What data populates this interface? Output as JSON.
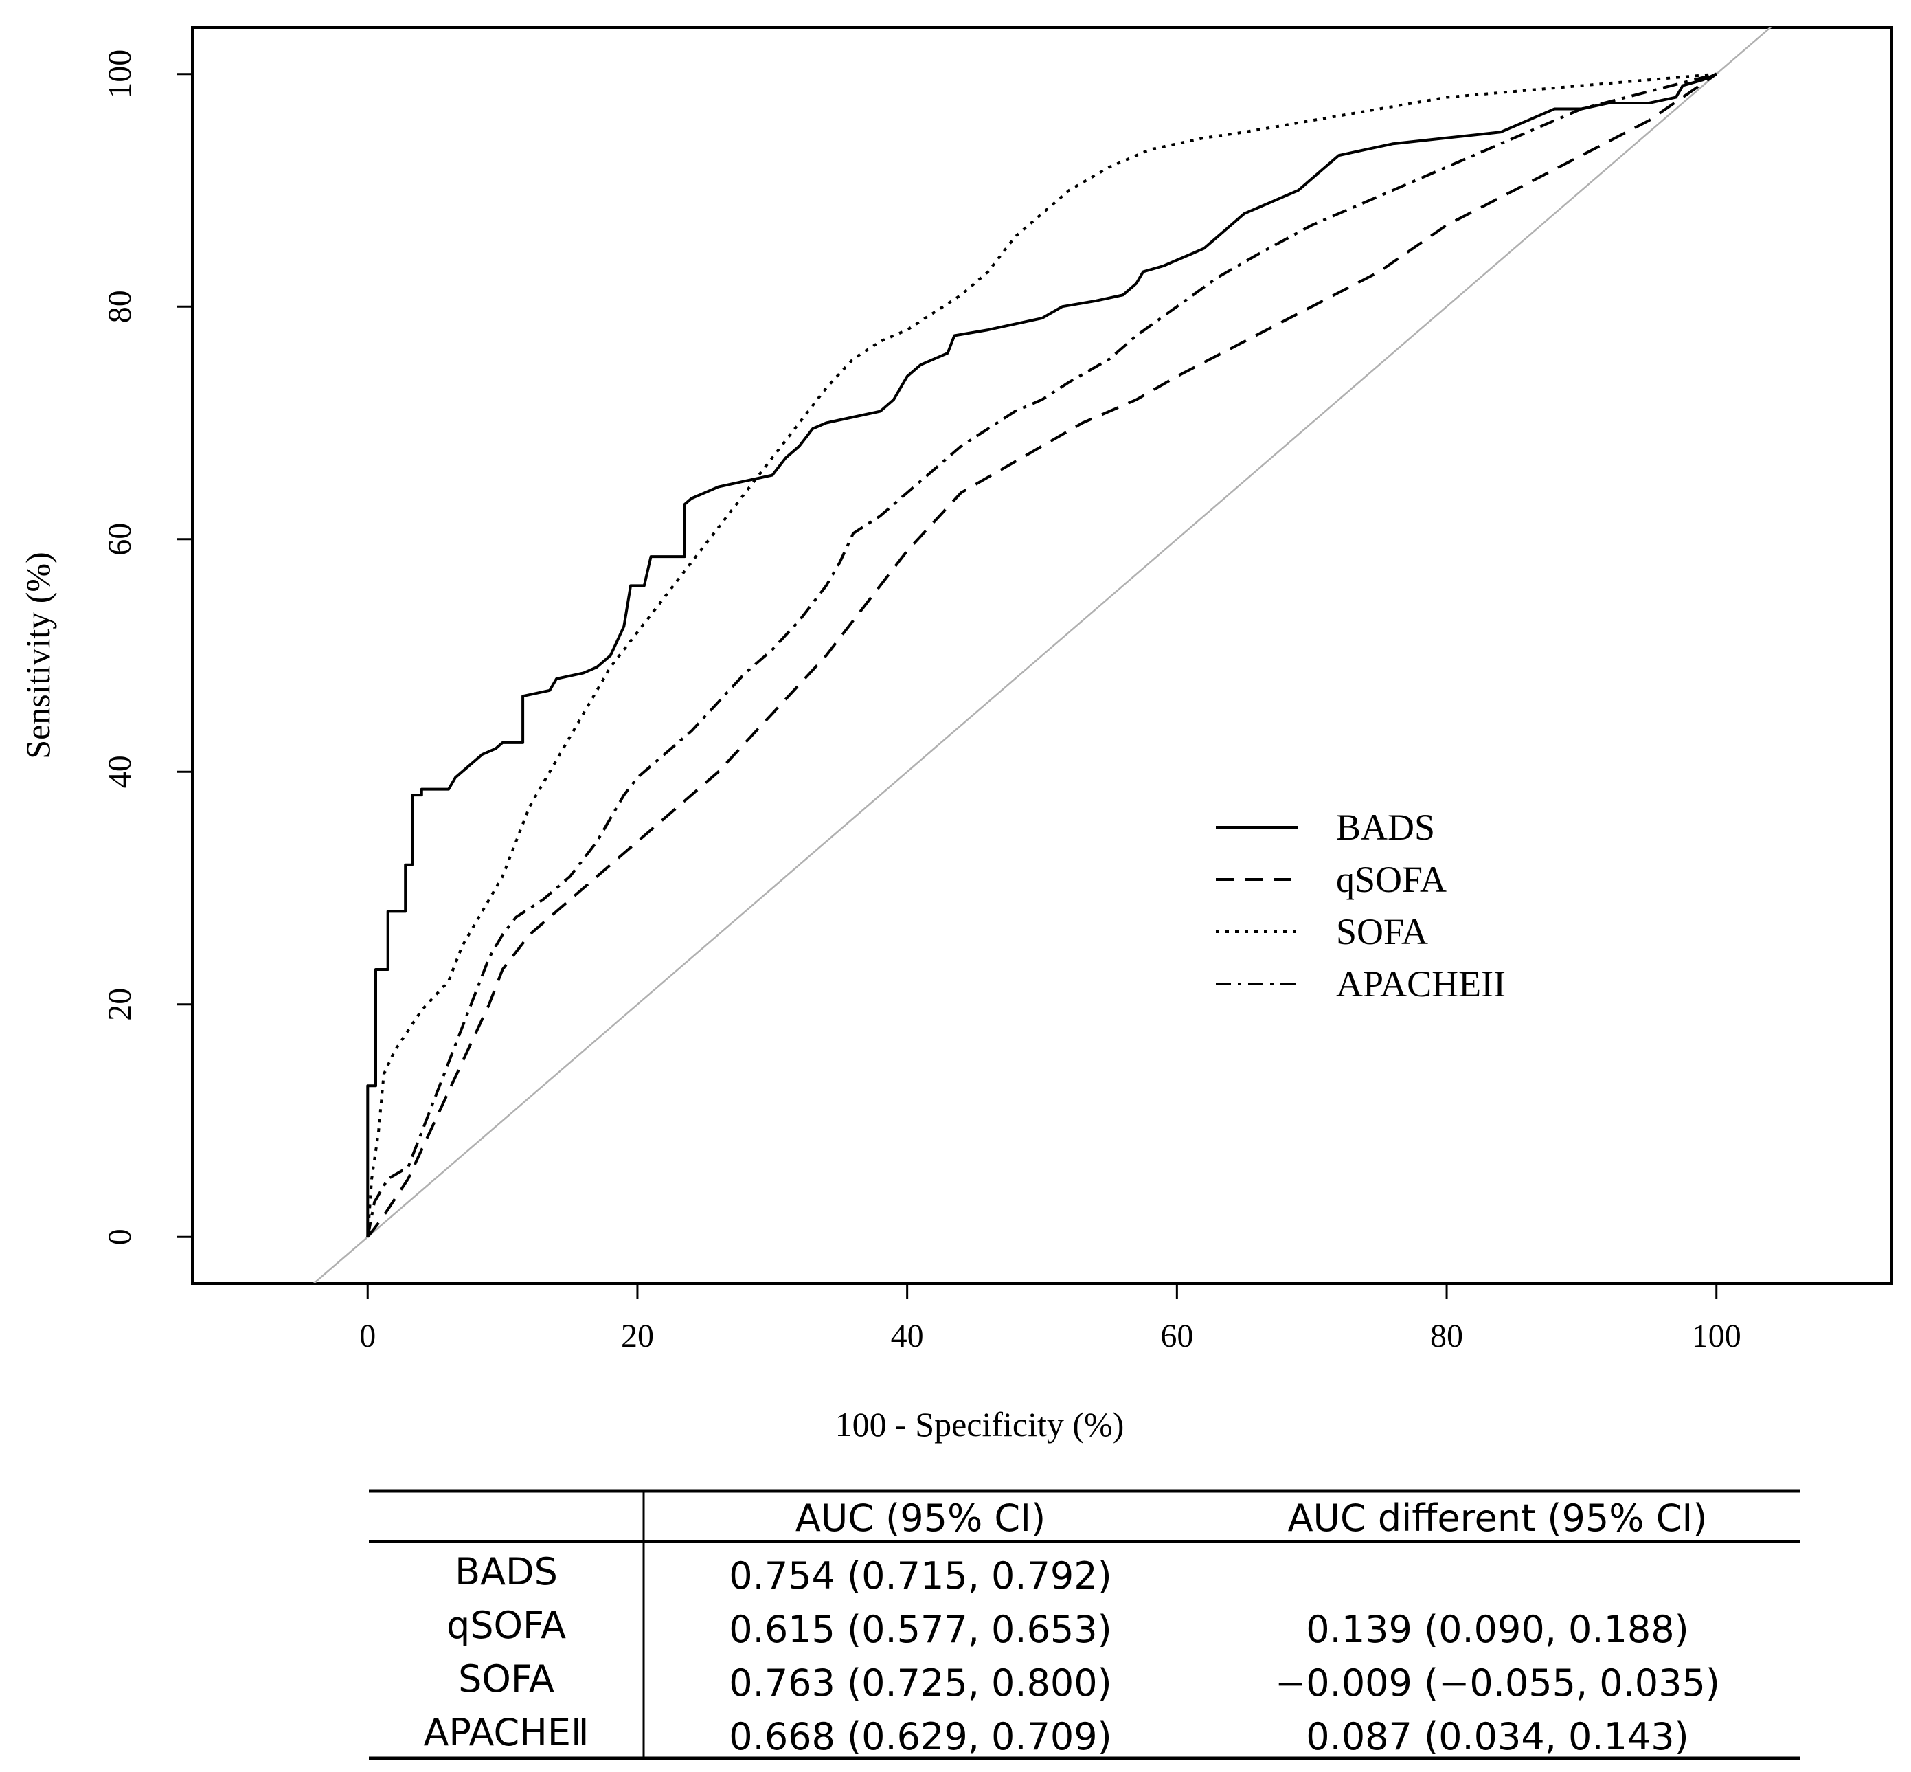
{
  "chart_data": {
    "type": "line",
    "title": "",
    "xlabel": "100 - Specificity (%)",
    "ylabel": "Sensitivity (%)",
    "xlim": [
      -13,
      113
    ],
    "ylim": [
      -4,
      104
    ],
    "xticks": [
      0,
      20,
      40,
      60,
      80,
      100
    ],
    "yticks": [
      0,
      20,
      40,
      60,
      80,
      100
    ],
    "legend_position": "center-right",
    "reference_line": {
      "name": "chance diagonal",
      "color": "#b0b0b0",
      "from": [
        0,
        0
      ],
      "to": [
        100,
        100
      ]
    },
    "series": [
      {
        "name": "BADS",
        "style": "solid",
        "points": [
          [
            0,
            0
          ],
          [
            0,
            13
          ],
          [
            0.6,
            13
          ],
          [
            0.6,
            23
          ],
          [
            1.5,
            23
          ],
          [
            1.5,
            28
          ],
          [
            2.8,
            28
          ],
          [
            2.8,
            32
          ],
          [
            3.3,
            32
          ],
          [
            3.3,
            38
          ],
          [
            4,
            38
          ],
          [
            4,
            38.5
          ],
          [
            6,
            38.5
          ],
          [
            6.5,
            39.5
          ],
          [
            7.5,
            40.5
          ],
          [
            8.5,
            41.5
          ],
          [
            9.5,
            42
          ],
          [
            10,
            42.5
          ],
          [
            11.5,
            42.5
          ],
          [
            11.5,
            46.5
          ],
          [
            13.5,
            47
          ],
          [
            14,
            48
          ],
          [
            16,
            48.5
          ],
          [
            17,
            49
          ],
          [
            18,
            50
          ],
          [
            19,
            52.5
          ],
          [
            19.5,
            56
          ],
          [
            20.5,
            56
          ],
          [
            21,
            58.5
          ],
          [
            23.5,
            58.5
          ],
          [
            23.5,
            63
          ],
          [
            24,
            63.5
          ],
          [
            26,
            64.5
          ],
          [
            28,
            65
          ],
          [
            30,
            65.5
          ],
          [
            31,
            67
          ],
          [
            32,
            68
          ],
          [
            33,
            69.5
          ],
          [
            34,
            70
          ],
          [
            36,
            70.5
          ],
          [
            38,
            71
          ],
          [
            39,
            72
          ],
          [
            39.5,
            73
          ],
          [
            40,
            74
          ],
          [
            41,
            75
          ],
          [
            42,
            75.5
          ],
          [
            43,
            76
          ],
          [
            43.5,
            77.5
          ],
          [
            46,
            78
          ],
          [
            48,
            78.5
          ],
          [
            50,
            79
          ],
          [
            51.5,
            80
          ],
          [
            54,
            80.5
          ],
          [
            56,
            81
          ],
          [
            57,
            82
          ],
          [
            57.5,
            83
          ],
          [
            59,
            83.5
          ],
          [
            60,
            84
          ],
          [
            61,
            84.5
          ],
          [
            62,
            85
          ],
          [
            63,
            86
          ],
          [
            64,
            87
          ],
          [
            65,
            88
          ],
          [
            66,
            88.5
          ],
          [
            67,
            89
          ],
          [
            68,
            89.5
          ],
          [
            69,
            90
          ],
          [
            70,
            91
          ],
          [
            71,
            92
          ],
          [
            72,
            93
          ],
          [
            74,
            93.5
          ],
          [
            76,
            94
          ],
          [
            80,
            94.5
          ],
          [
            84,
            95
          ],
          [
            86,
            96
          ],
          [
            87,
            96.5
          ],
          [
            88,
            97
          ],
          [
            90,
            97
          ],
          [
            92,
            97.5
          ],
          [
            95,
            97.5
          ],
          [
            97,
            98
          ],
          [
            97.5,
            99
          ],
          [
            99,
            99.5
          ],
          [
            100,
            100
          ]
        ]
      },
      {
        "name": "qSOFA",
        "style": "long-dash",
        "points": [
          [
            0,
            0
          ],
          [
            1,
            1.5
          ],
          [
            3,
            5
          ],
          [
            5,
            10
          ],
          [
            7,
            15
          ],
          [
            9,
            20
          ],
          [
            10,
            23
          ],
          [
            12,
            26
          ],
          [
            14,
            28
          ],
          [
            16,
            30
          ],
          [
            18,
            32
          ],
          [
            20,
            34
          ],
          [
            22,
            36
          ],
          [
            24,
            38
          ],
          [
            26,
            40
          ],
          [
            28,
            42.5
          ],
          [
            30,
            45
          ],
          [
            32,
            47.5
          ],
          [
            34,
            50
          ],
          [
            36,
            53
          ],
          [
            38,
            56
          ],
          [
            40,
            59
          ],
          [
            42,
            61.5
          ],
          [
            44,
            64
          ],
          [
            47,
            66
          ],
          [
            50,
            68
          ],
          [
            53,
            70
          ],
          [
            57,
            72
          ],
          [
            60,
            74
          ],
          [
            65,
            77
          ],
          [
            70,
            80
          ],
          [
            75,
            83
          ],
          [
            80,
            87
          ],
          [
            85,
            90
          ],
          [
            90,
            93
          ],
          [
            95,
            96
          ],
          [
            100,
            100
          ]
        ]
      },
      {
        "name": "SOFA",
        "style": "dotted",
        "points": [
          [
            0,
            0
          ],
          [
            0.3,
            5
          ],
          [
            0.8,
            9
          ],
          [
            1.2,
            14
          ],
          [
            2,
            16
          ],
          [
            4,
            19.5
          ],
          [
            6,
            22
          ],
          [
            7,
            25
          ],
          [
            8,
            27
          ],
          [
            10,
            31
          ],
          [
            12,
            37
          ],
          [
            14,
            41
          ],
          [
            16,
            45
          ],
          [
            18,
            49
          ],
          [
            20,
            52
          ],
          [
            22,
            55
          ],
          [
            24,
            58
          ],
          [
            26,
            61
          ],
          [
            28,
            64
          ],
          [
            30,
            67
          ],
          [
            32,
            70
          ],
          [
            34,
            73
          ],
          [
            36,
            75.5
          ],
          [
            38,
            77
          ],
          [
            40,
            78
          ],
          [
            42,
            79.5
          ],
          [
            44,
            81
          ],
          [
            46,
            83
          ],
          [
            48,
            86
          ],
          [
            50,
            88
          ],
          [
            52,
            90
          ],
          [
            55,
            92
          ],
          [
            58,
            93.5
          ],
          [
            62,
            94.5
          ],
          [
            65,
            95
          ],
          [
            70,
            96
          ],
          [
            75,
            97
          ],
          [
            80,
            98
          ],
          [
            85,
            98.5
          ],
          [
            90,
            99
          ],
          [
            95,
            99.5
          ],
          [
            100,
            100
          ]
        ]
      },
      {
        "name": "APACHEII",
        "style": "dash-dot",
        "points": [
          [
            0,
            0
          ],
          [
            0.5,
            3
          ],
          [
            1.5,
            5
          ],
          [
            3,
            6
          ],
          [
            5,
            12
          ],
          [
            7,
            18
          ],
          [
            8,
            21
          ],
          [
            9,
            24
          ],
          [
            10,
            26
          ],
          [
            11,
            27.5
          ],
          [
            13,
            29
          ],
          [
            15,
            31
          ],
          [
            17,
            34
          ],
          [
            18,
            36
          ],
          [
            19,
            38
          ],
          [
            20,
            39.5
          ],
          [
            22,
            41.5
          ],
          [
            24,
            43.5
          ],
          [
            26,
            46
          ],
          [
            28,
            48.5
          ],
          [
            30,
            50.5
          ],
          [
            32,
            53
          ],
          [
            34,
            56
          ],
          [
            35,
            58
          ],
          [
            36,
            60.5
          ],
          [
            38,
            62
          ],
          [
            40,
            64
          ],
          [
            42,
            66
          ],
          [
            44,
            68
          ],
          [
            46,
            69.5
          ],
          [
            48,
            71
          ],
          [
            50,
            72
          ],
          [
            52,
            73.5
          ],
          [
            55,
            75.5
          ],
          [
            57,
            77.5
          ],
          [
            60,
            80
          ],
          [
            63,
            82.5
          ],
          [
            66,
            84.5
          ],
          [
            70,
            87
          ],
          [
            75,
            89.5
          ],
          [
            80,
            92
          ],
          [
            85,
            94.5
          ],
          [
            90,
            97
          ],
          [
            95,
            98.5
          ],
          [
            100,
            100
          ]
        ]
      }
    ],
    "legend": [
      "BADS",
      "qSOFA",
      "SOFA",
      "APACHEII"
    ]
  },
  "table": {
    "headers": [
      "",
      "AUC (95% CI)",
      "AUC different (95% CI)"
    ],
    "rows": [
      {
        "label": "BADS",
        "auc": "0.754 (0.715, 0.792)",
        "diff": ""
      },
      {
        "label": "qSOFA",
        "auc": "0.615 (0.577, 0.653)",
        "diff": "0.139 (0.090, 0.188)"
      },
      {
        "label": "SOFA",
        "auc": "0.763 (0.725, 0.800)",
        "diff": "−0.009 (−0.055, 0.035)"
      },
      {
        "label": "APACHEⅡ",
        "auc": "0.668 (0.629, 0.709)",
        "diff": "0.087 (0.034, 0.143)"
      }
    ]
  }
}
